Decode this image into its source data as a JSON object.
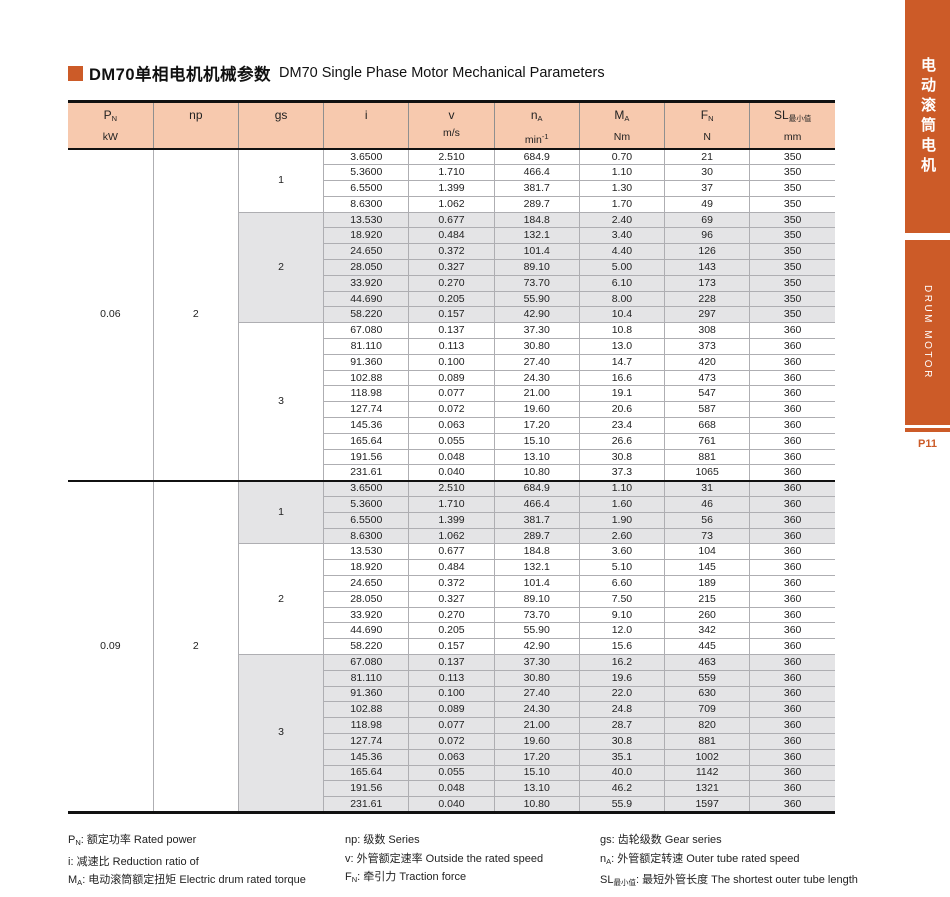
{
  "title": {
    "square_color": "#cc5b28",
    "zh": "DM70单相电机机械参数",
    "en": "DM70 Single Phase Motor Mechanical Parameters"
  },
  "table": {
    "header_bg": "#f7c9ae",
    "shade_color": "#e4e4e6",
    "columns": [
      {
        "label": "P",
        "sub": "N",
        "unit": "kW"
      },
      {
        "label": "np",
        "sub": "",
        "unit": ""
      },
      {
        "label": "gs",
        "sub": "",
        "unit": ""
      },
      {
        "label": "i",
        "sub": "",
        "unit": ""
      },
      {
        "label": "v",
        "sub": "",
        "unit": "m/s"
      },
      {
        "label": "n",
        "sub": "A",
        "unit": "min",
        "unit_sup": "-1"
      },
      {
        "label": "M",
        "sub": "A",
        "unit": "Nm"
      },
      {
        "label": "F",
        "sub": "N",
        "unit": "N"
      },
      {
        "label": "SL",
        "sub": "最小值",
        "unit": "mm"
      }
    ],
    "sections": [
      {
        "power": "0.06",
        "np": "2",
        "groups": [
          {
            "gs": "1",
            "shaded": false,
            "rows": [
              [
                "3.6500",
                "2.510",
                "684.9",
                "0.70",
                "21",
                "350"
              ],
              [
                "5.3600",
                "1.710",
                "466.4",
                "1.10",
                "30",
                "350"
              ],
              [
                "6.5500",
                "1.399",
                "381.7",
                "1.30",
                "37",
                "350"
              ],
              [
                "8.6300",
                "1.062",
                "289.7",
                "1.70",
                "49",
                "350"
              ]
            ]
          },
          {
            "gs": "2",
            "shaded": true,
            "rows": [
              [
                "13.530",
                "0.677",
                "184.8",
                "2.40",
                "69",
                "350"
              ],
              [
                "18.920",
                "0.484",
                "132.1",
                "3.40",
                "96",
                "350"
              ],
              [
                "24.650",
                "0.372",
                "101.4",
                "4.40",
                "126",
                "350"
              ],
              [
                "28.050",
                "0.327",
                "89.10",
                "5.00",
                "143",
                "350"
              ],
              [
                "33.920",
                "0.270",
                "73.70",
                "6.10",
                "173",
                "350"
              ],
              [
                "44.690",
                "0.205",
                "55.90",
                "8.00",
                "228",
                "350"
              ],
              [
                "58.220",
                "0.157",
                "42.90",
                "10.4",
                "297",
                "350"
              ]
            ]
          },
          {
            "gs": "3",
            "shaded": false,
            "rows": [
              [
                "67.080",
                "0.137",
                "37.30",
                "10.8",
                "308",
                "360"
              ],
              [
                "81.110",
                "0.113",
                "30.80",
                "13.0",
                "373",
                "360"
              ],
              [
                "91.360",
                "0.100",
                "27.40",
                "14.7",
                "420",
                "360"
              ],
              [
                "102.88",
                "0.089",
                "24.30",
                "16.6",
                "473",
                "360"
              ],
              [
                "118.98",
                "0.077",
                "21.00",
                "19.1",
                "547",
                "360"
              ],
              [
                "127.74",
                "0.072",
                "19.60",
                "20.6",
                "587",
                "360"
              ],
              [
                "145.36",
                "0.063",
                "17.20",
                "23.4",
                "668",
                "360"
              ],
              [
                "165.64",
                "0.055",
                "15.10",
                "26.6",
                "761",
                "360"
              ],
              [
                "191.56",
                "0.048",
                "13.10",
                "30.8",
                "881",
                "360"
              ],
              [
                "231.61",
                "0.040",
                "10.80",
                "37.3",
                "1065",
                "360"
              ]
            ]
          }
        ]
      },
      {
        "power": "0.09",
        "np": "2",
        "groups": [
          {
            "gs": "1",
            "shaded": true,
            "rows": [
              [
                "3.6500",
                "2.510",
                "684.9",
                "1.10",
                "31",
                "360"
              ],
              [
                "5.3600",
                "1.710",
                "466.4",
                "1.60",
                "46",
                "360"
              ],
              [
                "6.5500",
                "1.399",
                "381.7",
                "1.90",
                "56",
                "360"
              ],
              [
                "8.6300",
                "1.062",
                "289.7",
                "2.60",
                "73",
                "360"
              ]
            ]
          },
          {
            "gs": "2",
            "shaded": false,
            "rows": [
              [
                "13.530",
                "0.677",
                "184.8",
                "3.60",
                "104",
                "360"
              ],
              [
                "18.920",
                "0.484",
                "132.1",
                "5.10",
                "145",
                "360"
              ],
              [
                "24.650",
                "0.372",
                "101.4",
                "6.60",
                "189",
                "360"
              ],
              [
                "28.050",
                "0.327",
                "89.10",
                "7.50",
                "215",
                "360"
              ],
              [
                "33.920",
                "0.270",
                "73.70",
                "9.10",
                "260",
                "360"
              ],
              [
                "44.690",
                "0.205",
                "55.90",
                "12.0",
                "342",
                "360"
              ],
              [
                "58.220",
                "0.157",
                "42.90",
                "15.6",
                "445",
                "360"
              ]
            ]
          },
          {
            "gs": "3",
            "shaded": true,
            "rows": [
              [
                "67.080",
                "0.137",
                "37.30",
                "16.2",
                "463",
                "360"
              ],
              [
                "81.110",
                "0.113",
                "30.80",
                "19.6",
                "559",
                "360"
              ],
              [
                "91.360",
                "0.100",
                "27.40",
                "22.0",
                "630",
                "360"
              ],
              [
                "102.88",
                "0.089",
                "24.30",
                "24.8",
                "709",
                "360"
              ],
              [
                "118.98",
                "0.077",
                "21.00",
                "28.7",
                "820",
                "360"
              ],
              [
                "127.74",
                "0.072",
                "19.60",
                "30.8",
                "881",
                "360"
              ],
              [
                "145.36",
                "0.063",
                "17.20",
                "35.1",
                "1002",
                "360"
              ],
              [
                "165.64",
                "0.055",
                "15.10",
                "40.0",
                "1142",
                "360"
              ],
              [
                "191.56",
                "0.048",
                "13.10",
                "46.2",
                "1321",
                "360"
              ],
              [
                "231.61",
                "0.040",
                "10.80",
                "55.9",
                "1597",
                "360"
              ]
            ]
          }
        ]
      }
    ]
  },
  "legend": {
    "columns": [
      {
        "items": [
          {
            "sym": "P",
            "sub": "N",
            "text": "额定功率 Rated power"
          },
          {
            "sym": "i",
            "sub": "",
            "text": "减速比 Reduction ratio of"
          },
          {
            "sym": "M",
            "sub": "A",
            "text": "电动滚筒额定扭矩 Electric drum rated torque"
          }
        ]
      },
      {
        "items": [
          {
            "sym": "np",
            "sub": "",
            "text": "级数 Series"
          },
          {
            "sym": "v",
            "sub": "",
            "text": "外管额定速率 Outside the rated speed"
          },
          {
            "sym": "F",
            "sub": "N",
            "text": "牵引力 Traction force"
          }
        ]
      },
      {
        "items": [
          {
            "sym": "gs",
            "sub": "",
            "text": "齿轮级数 Gear series"
          },
          {
            "sym": "n",
            "sub": "A",
            "text": "外管额定转速 Outer tube rated speed"
          },
          {
            "sym": "SL",
            "sub": "最小值",
            "text": "最短外管长度 The shortest outer tube length"
          }
        ]
      }
    ]
  },
  "sidebar": {
    "accent": "#cc5b28",
    "tab1_text": "电动滚筒电机",
    "tab2_text": "DRUM MOTOR",
    "page_label": "P11"
  }
}
